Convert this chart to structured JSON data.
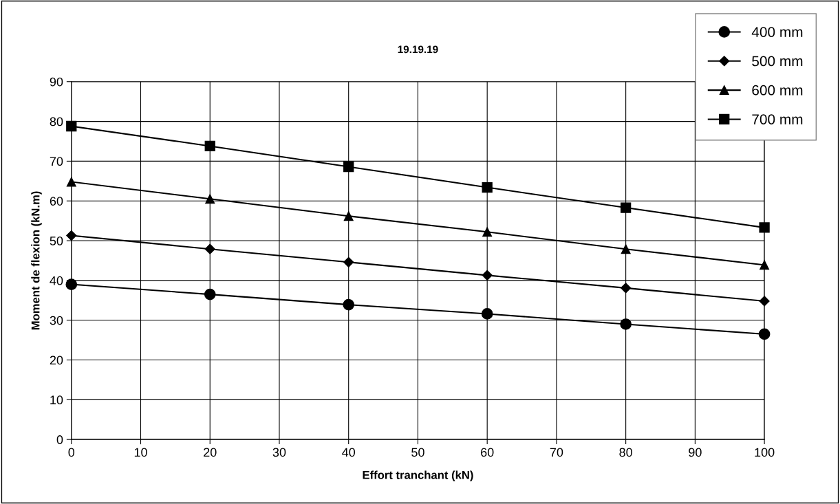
{
  "chart_data": {
    "type": "line",
    "title": "19.19.19",
    "xlabel": "Effort tranchant (kN)",
    "ylabel": "Moment de flexion (kN.m)",
    "x": [
      0,
      20,
      40,
      60,
      80,
      100
    ],
    "series": [
      {
        "name": "400 mm",
        "color": "#000000",
        "marker": "circle",
        "values": [
          39.0,
          36.5,
          33.9,
          31.6,
          29.0,
          26.5
        ]
      },
      {
        "name": "500 mm",
        "color": "#000000",
        "marker": "diamond",
        "values": [
          51.3,
          47.9,
          44.6,
          41.3,
          38.1,
          34.8
        ]
      },
      {
        "name": "600 mm",
        "color": "#000000",
        "marker": "triangle",
        "values": [
          64.8,
          60.5,
          56.2,
          52.2,
          47.9,
          43.9
        ]
      },
      {
        "name": "700 mm",
        "color": "#000000",
        "marker": "square",
        "values": [
          78.8,
          73.8,
          68.6,
          63.4,
          58.3,
          53.3
        ]
      }
    ],
    "xlim": [
      0,
      100
    ],
    "xticks": [
      0,
      10,
      20,
      30,
      40,
      50,
      60,
      70,
      80,
      90,
      100
    ],
    "ylim": [
      0,
      90
    ],
    "yticks": [
      0,
      10,
      20,
      30,
      40,
      50,
      60,
      70,
      80,
      90
    ],
    "grid": true,
    "legend": "top right",
    "line_style": "solid"
  }
}
